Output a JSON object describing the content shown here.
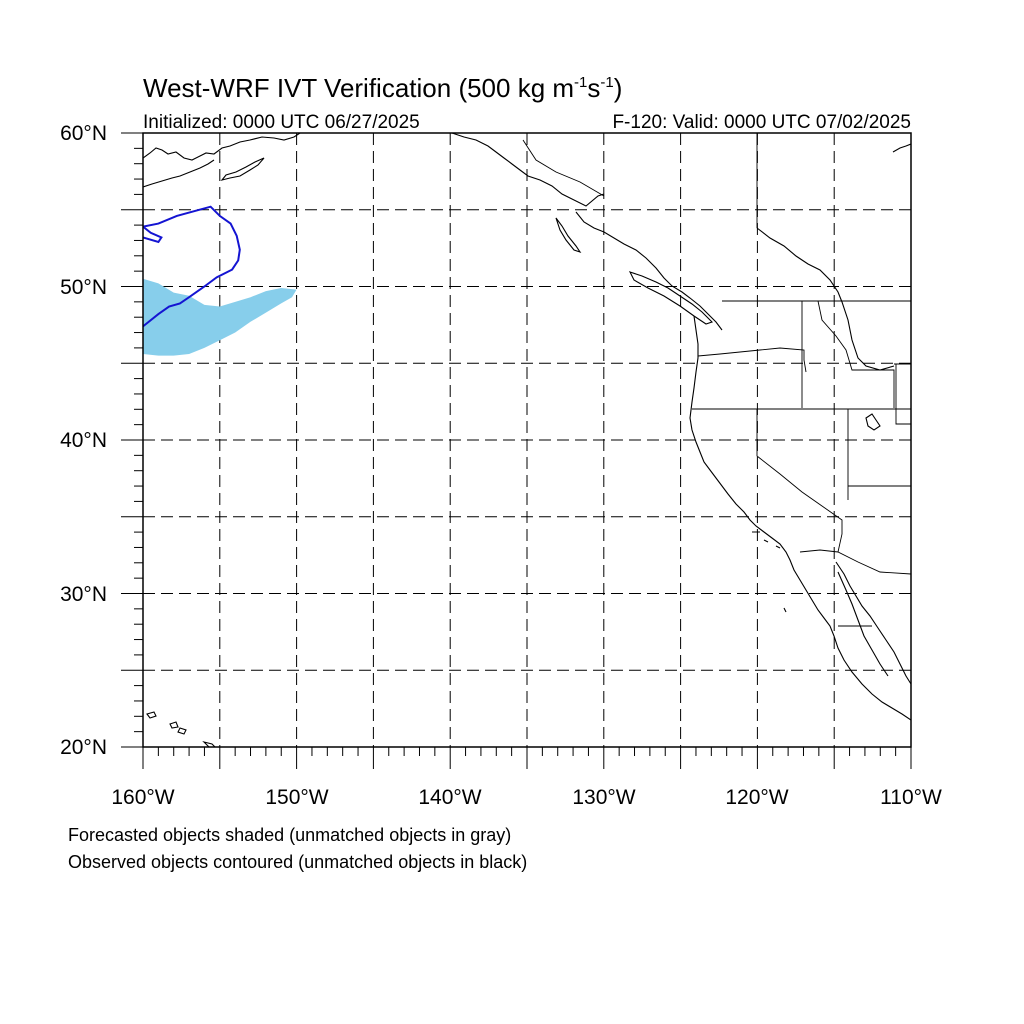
{
  "title": {
    "main": "West-WRF IVT Verification (500 kg m",
    "sup1": "-1",
    "mid": "s",
    "sup2": "-1",
    "end": ")"
  },
  "init_text": "Initialized: 0000 UTC 06/27/2025",
  "valid_text": "F-120: Valid: 0000 UTC 07/02/2025",
  "lat_labels": [
    "60°N",
    "50°N",
    "40°N",
    "30°N",
    "20°N"
  ],
  "lon_labels": [
    "160°W",
    "150°W",
    "140°W",
    "130°W",
    "120°W",
    "110°W"
  ],
  "legend": {
    "line1": "Forecasted objects shaded (unmatched objects in gray)",
    "line2": "Observed objects contoured (unmatched objects in black)"
  },
  "map_extent": {
    "lon": [
      -160,
      -110
    ],
    "lat": [
      20,
      60
    ]
  },
  "colors": {
    "forecast_fill": "#87ceeb",
    "observed_contour": "#1414d2",
    "coast": "#000000",
    "grid": "#000000"
  },
  "forecast_object": [
    [
      -160,
      50.5
    ],
    [
      -159,
      50.2
    ],
    [
      -158,
      49.6
    ],
    [
      -157,
      49.4
    ],
    [
      -156,
      48.8
    ],
    [
      -155,
      48.7
    ],
    [
      -154,
      49.0
    ],
    [
      -153,
      49.3
    ],
    [
      -152,
      49.7
    ],
    [
      -151,
      49.9
    ],
    [
      -150,
      49.8
    ],
    [
      -150.3,
      49.3
    ],
    [
      -151,
      48.9
    ],
    [
      -152,
      48.3
    ],
    [
      -153,
      47.7
    ],
    [
      -154,
      47.0
    ],
    [
      -155,
      46.5
    ],
    [
      -156,
      46.0
    ],
    [
      -157,
      45.6
    ],
    [
      -158,
      45.5
    ],
    [
      -159,
      45.5
    ],
    [
      -160,
      45.6
    ]
  ],
  "observed_object": [
    [
      -160,
      47.4
    ],
    [
      -159,
      48.2
    ],
    [
      -158.3,
      48.7
    ],
    [
      -157.6,
      48.9
    ],
    [
      -157,
      49.3
    ],
    [
      -156,
      50.0
    ],
    [
      -155.2,
      50.6
    ],
    [
      -154.2,
      51.1
    ],
    [
      -153.8,
      51.7
    ],
    [
      -153.7,
      52.4
    ],
    [
      -153.9,
      53.3
    ],
    [
      -154.3,
      54.1
    ],
    [
      -155,
      54.6
    ],
    [
      -155.6,
      55.2
    ],
    [
      -156.7,
      54.9
    ],
    [
      -157.8,
      54.6
    ],
    [
      -159.0,
      54.1
    ],
    [
      -160,
      53.9
    ],
    [
      -159.5,
      53.5
    ],
    [
      -158.8,
      53.2
    ],
    [
      -159.0,
      52.9
    ],
    [
      -160,
      53.2
    ]
  ]
}
